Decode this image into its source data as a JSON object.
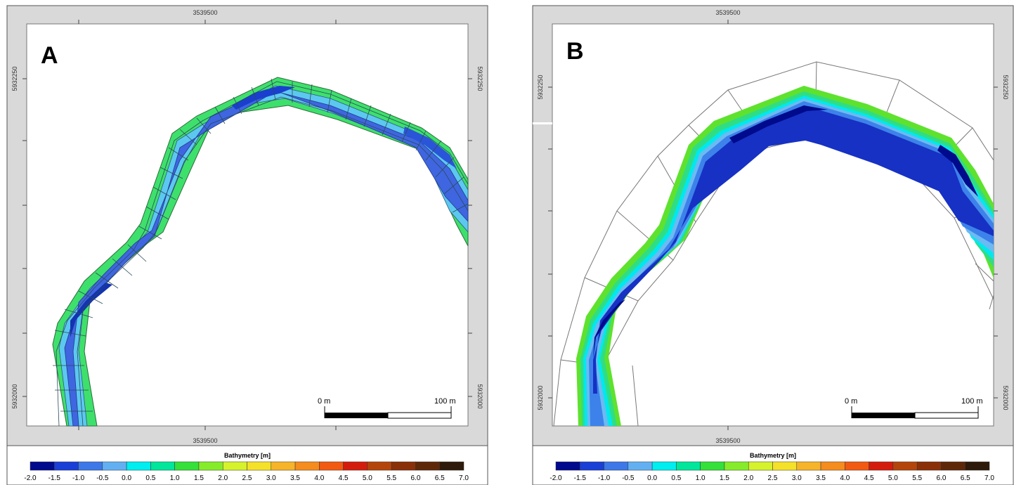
{
  "panels": [
    {
      "id": "A",
      "label": "A",
      "coord_top": "3539500",
      "coord_bottom": "3539500",
      "coord_left_upper": "5932250",
      "coord_left_lower": "5932000",
      "coord_right_upper": "5932250",
      "coord_right_lower": "5932000",
      "scalebar_start": "0 m",
      "scalebar_end": "100 m",
      "legend_title": "Bathymetry [m]"
    },
    {
      "id": "B",
      "label": "B",
      "coord_top": "3539500",
      "coord_bottom": "3539500",
      "coord_left_upper": "5932250",
      "coord_left_lower": "5932000",
      "coord_right_upper": "5932250",
      "coord_right_lower": "5932000",
      "scalebar_start": "0 m",
      "scalebar_end": "100 m",
      "legend_title": "Bathymetry [m]"
    }
  ],
  "legend": {
    "ticks": [
      "-2.0",
      "-1.5",
      "-1.0",
      "-0.5",
      "0.0",
      "0.5",
      "1.0",
      "1.5",
      "2.0",
      "2.5",
      "3.0",
      "3.5",
      "4.0",
      "4.5",
      "5.0",
      "5.5",
      "6.0",
      "6.5",
      "7.0"
    ],
    "colors": [
      "#000a8c",
      "#1a3fd6",
      "#3c78e8",
      "#62b0f2",
      "#00eef0",
      "#00e69a",
      "#34e03a",
      "#86ec2a",
      "#d6f22c",
      "#f4e12a",
      "#f5b42a",
      "#f58c1e",
      "#f25a12",
      "#d41c0c",
      "#b4450a",
      "#8a3008",
      "#5e2808",
      "#2e1a0a"
    ]
  }
}
